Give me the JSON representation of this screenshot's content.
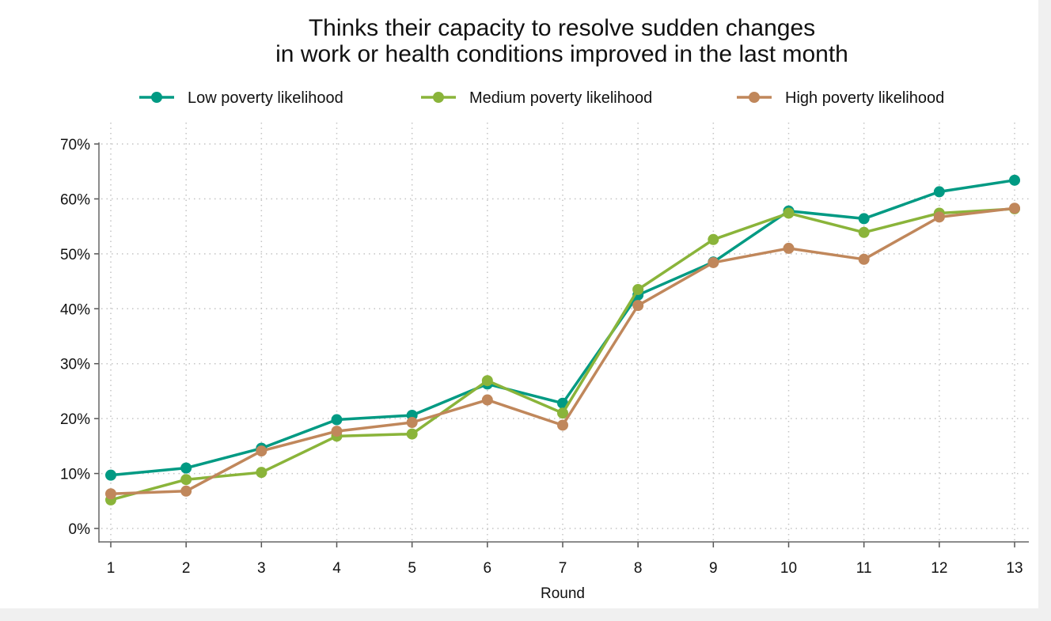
{
  "chart_data": {
    "type": "line",
    "title": [
      "Thinks their capacity to resolve sudden changes",
      "in work or health conditions improved in the last month"
    ],
    "xlabel": "Round",
    "ylabel": "",
    "x": [
      1,
      2,
      3,
      4,
      5,
      6,
      7,
      8,
      9,
      10,
      11,
      12,
      13
    ],
    "ylim": [
      0,
      70
    ],
    "yticks": [
      0,
      10,
      20,
      30,
      40,
      50,
      60,
      70
    ],
    "ytick_labels": [
      "0%",
      "10%",
      "20%",
      "30%",
      "40%",
      "50%",
      "60%",
      "70%"
    ],
    "grid": true,
    "legend_position": "top",
    "series": [
      {
        "name": "Low poverty likelihood",
        "color": "#009a83",
        "values": [
          9.7,
          11.0,
          14.6,
          19.8,
          20.6,
          26.3,
          22.8,
          42.5,
          48.5,
          57.8,
          56.4,
          61.3,
          63.4
        ]
      },
      {
        "name": "Medium poverty likelihood",
        "color": "#8ab43a",
        "values": [
          5.2,
          8.9,
          10.2,
          16.8,
          17.2,
          26.9,
          21.0,
          43.5,
          52.6,
          57.4,
          53.9,
          57.4,
          58.2
        ]
      },
      {
        "name": "High poverty likelihood",
        "color": "#c0875b",
        "values": [
          6.3,
          6.8,
          14.1,
          17.7,
          19.3,
          23.4,
          18.8,
          40.6,
          48.4,
          51.0,
          49.0,
          56.7,
          58.3
        ]
      }
    ]
  }
}
